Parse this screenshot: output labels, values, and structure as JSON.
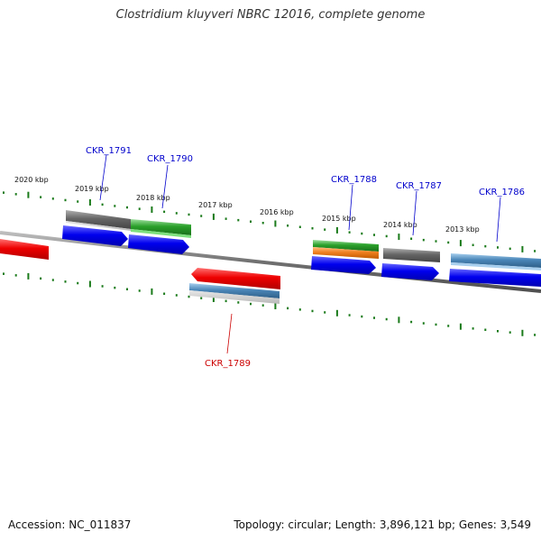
{
  "title": "Clostridium kluyveri NBRC 12016, complete genome",
  "accession_label": "Accession: NC_011837",
  "stats_label": "Topology: circular; Length: 3,896,121 bp; Genes: 3,549",
  "kbp_labels": [
    "2020 kbp",
    "2019 kbp",
    "2018 kbp",
    "2017 kbp",
    "2016 kbp",
    "2015 kbp",
    "2014 kbp",
    "2013 kbp"
  ],
  "gene_labels": [
    {
      "text": "CKR_1791",
      "color": "#0000cc"
    },
    {
      "text": "CKR_1790",
      "color": "#0000cc"
    },
    {
      "text": "CKR_1789",
      "color": "#cc0000"
    },
    {
      "text": "CKR_1788",
      "color": "#0000cc"
    },
    {
      "text": "CKR_1787",
      "color": "#0000cc"
    },
    {
      "text": "CKR_1786",
      "color": "#0000cc"
    }
  ],
  "colors": {
    "backbone": "#707070",
    "tick": "#1a7a1a",
    "blue": "#0000ee",
    "red": "#ee0000",
    "green": "#2aa02a",
    "gray": "#666666",
    "steelblue": "#4a86b8",
    "orange": "#f08020"
  }
}
